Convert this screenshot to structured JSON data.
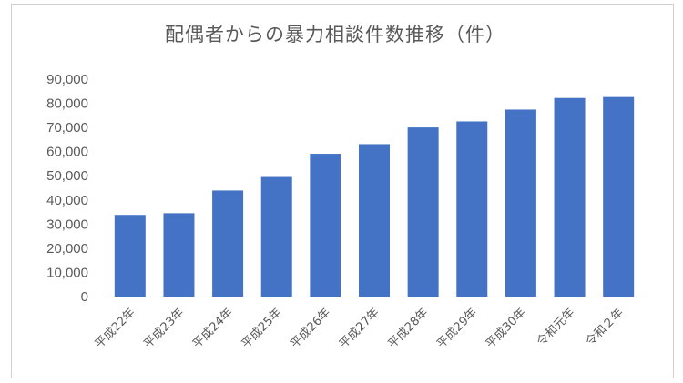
{
  "chart_data": {
    "type": "bar",
    "title": "配偶者からの暴力相談件数推移（件）",
    "xlabel": "",
    "ylabel": "",
    "categories": [
      "平成22年",
      "平成23年",
      "平成24年",
      "平成25年",
      "平成26年",
      "平成27年",
      "平成28年",
      "平成29年",
      "平成30年",
      "令和元年",
      "令和２年"
    ],
    "values": [
      33800,
      34500,
      43900,
      49500,
      59100,
      63100,
      70000,
      72500,
      77400,
      82200,
      82600
    ],
    "ylim": [
      0,
      90000
    ],
    "yticks": [
      0,
      10000,
      20000,
      30000,
      40000,
      50000,
      60000,
      70000,
      80000,
      90000
    ],
    "ytick_labels": [
      "0",
      "10,000",
      "20,000",
      "30,000",
      "40,000",
      "50,000",
      "60,000",
      "70,000",
      "80,000",
      "90,000"
    ],
    "grid": false,
    "legend": "none",
    "bar_color": "#4472C4"
  }
}
